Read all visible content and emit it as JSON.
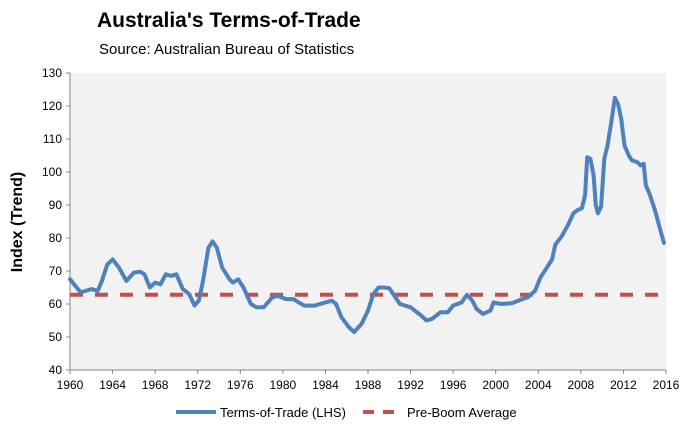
{
  "chart_data": {
    "type": "line",
    "title": "Australia's Terms-of-Trade",
    "subtitle": "Source: Australian Bureau of Statistics",
    "xlabel": "",
    "ylabel": "Index (Trend)",
    "xlim": [
      1960,
      2016
    ],
    "ylim": [
      40,
      130
    ],
    "xticks": [
      "1960",
      "1964",
      "1968",
      "1972",
      "1976",
      "1980",
      "1984",
      "1988",
      "1992",
      "1996",
      "2000",
      "2004",
      "2008",
      "2012",
      "2016"
    ],
    "yticks": [
      "40",
      "50",
      "60",
      "70",
      "80",
      "90",
      "100",
      "110",
      "120",
      "130"
    ],
    "grid": false,
    "legend": "bottom",
    "colors": {
      "terms_of_trade": "#4f81bd",
      "pre_boom_average": "#c0504d",
      "plot_background": "#f2f2f2"
    },
    "series": [
      {
        "name": "Terms-of-Trade (LHS)",
        "style": "solid",
        "x": [
          1960,
          1961,
          1962,
          1962.6,
          1963,
          1963.5,
          1964,
          1964.6,
          1965.3,
          1966,
          1966.6,
          1967,
          1967.5,
          1968,
          1968.5,
          1969,
          1969.5,
          1970,
          1970.6,
          1971.2,
          1971.7,
          1972.1,
          1972.5,
          1973,
          1973.4,
          1973.8,
          1974.3,
          1975,
          1975.3,
          1975.8,
          1976.3,
          1977,
          1977.5,
          1978.2,
          1979,
          1979.5,
          1980.3,
          1981,
          1981.5,
          1982,
          1983,
          1984,
          1984.6,
          1985,
          1985.5,
          1986.2,
          1986.7,
          1987.4,
          1988,
          1988.5,
          1989,
          1989.5,
          1990,
          1991,
          1992,
          1993,
          1993.5,
          1994,
          1994.8,
          1995.5,
          1996,
          1996.8,
          1997,
          1997.3,
          1997.8,
          1998.2,
          1998.8,
          1999.5,
          1999.8,
          2000.5,
          2001.5,
          2002.5,
          2003,
          2003.7,
          2004.2,
          2004.8,
          2005.3,
          2005.6,
          2006.2,
          2006.8,
          2007.3,
          2007.7,
          2008.1,
          2008.4,
          2008.6,
          2008.9,
          2009.2,
          2009.4,
          2009.6,
          2009.9,
          2010.2,
          2010.5,
          2010.8,
          2011.2,
          2011.5,
          2011.8,
          2012.1,
          2012.5,
          2012.8,
          2013.3,
          2013.6,
          2013.9,
          2014.1,
          2014.5,
          2015,
          2015.5,
          2015.8
        ],
        "values": [
          67.5,
          63.5,
          64.5,
          64,
          67,
          72,
          73.5,
          71,
          67,
          69.5,
          69.8,
          69,
          65,
          66.5,
          66,
          69,
          68.5,
          69,
          64.5,
          63,
          59.5,
          61,
          67,
          77,
          79,
          77,
          71,
          67.5,
          66.5,
          67.5,
          65,
          60,
          59,
          59,
          62,
          62.5,
          61.5,
          61.5,
          60.5,
          59.5,
          59.5,
          60.5,
          61,
          60,
          56,
          53,
          51.5,
          54,
          58,
          63,
          65,
          65,
          64.8,
          60,
          59,
          56.5,
          55,
          55.5,
          57.5,
          57.5,
          59.5,
          60.5,
          61.5,
          62.8,
          61,
          58.5,
          57,
          58,
          60.5,
          60,
          60.2,
          61.5,
          62,
          64,
          68,
          71,
          73.5,
          78,
          80.5,
          84,
          87.5,
          88.5,
          89,
          93,
          104.5,
          104,
          99,
          90,
          87.5,
          89.5,
          104,
          108,
          114,
          122.5,
          120.5,
          116,
          108,
          105,
          103.5,
          103,
          102,
          102.5,
          96,
          93,
          88,
          82,
          78.5
        ]
      },
      {
        "name": "Pre-Boom Average",
        "style": "dashed",
        "x": [
          1960,
          2016
        ],
        "values": [
          62.8,
          62.8
        ]
      }
    ]
  }
}
